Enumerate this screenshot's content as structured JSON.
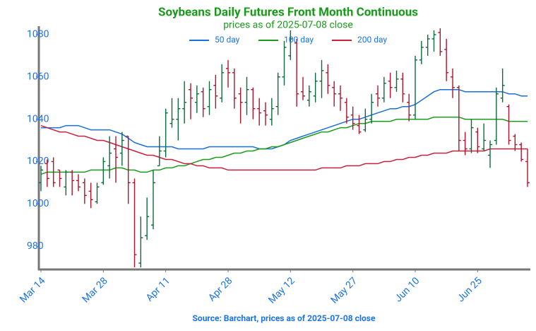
{
  "chart_data": {
    "type": "ohlc",
    "title": "Soybeans Daily Futures Front Month Continuous",
    "subtitle": "prices as of 2025-07-08 close",
    "source": "Source: Barchart, prices as of 2025-07-08 close",
    "categories": [
      "Mar 14",
      null,
      null,
      null,
      null,
      null,
      null,
      null,
      null,
      null,
      "Mar 28",
      null,
      null,
      null,
      null,
      null,
      null,
      null,
      null,
      null,
      "Apr 11",
      null,
      null,
      null,
      null,
      null,
      null,
      null,
      null,
      null,
      "Apr 28",
      null,
      null,
      null,
      null,
      null,
      null,
      null,
      null,
      null,
      "May 12",
      null,
      null,
      null,
      null,
      null,
      null,
      null,
      null,
      null,
      "May 27",
      null,
      null,
      null,
      null,
      null,
      null,
      null,
      null,
      null,
      "Jun 10",
      null,
      null,
      null,
      null,
      null,
      null,
      null,
      null,
      null,
      "Jun 25",
      null,
      null,
      null,
      null,
      null,
      null,
      null,
      null
    ],
    "open": [
      1010,
      1019,
      1020,
      1016,
      1008,
      1015,
      1011,
      1010,
      1006,
      1001,
      1010,
      1018,
      1026,
      1024,
      1032,
      1010,
      972,
      985,
      990,
      1018,
      1025,
      1038,
      1040,
      1045,
      1054,
      1048,
      1053,
      1046,
      1056,
      1050,
      1064,
      1062,
      1052,
      1048,
      1054,
      1045,
      1044,
      1040,
      1046,
      1060,
      1070,
      1076,
      1053,
      1049,
      1051,
      1058,
      1062,
      1055,
      1052,
      1048,
      1042,
      1037,
      1035,
      1040,
      1052,
      1050,
      1058,
      1055,
      1059,
      1048,
      1042,
      1068,
      1074,
      1078,
      1081,
      1073,
      1060,
      1055,
      1030,
      1026,
      1034,
      1026,
      1023,
      1030,
      1050,
      1046,
      1032,
      1028,
      1020
    ],
    "high": [
      1018,
      1021,
      1022,
      1016,
      1016,
      1016,
      1014,
      1012,
      1010,
      1010,
      1022,
      1032,
      1032,
      1034,
      1032,
      1012,
      994,
      1003,
      1016,
      1032,
      1045,
      1050,
      1050,
      1058,
      1057,
      1056,
      1055,
      1058,
      1061,
      1066,
      1068,
      1064,
      1055,
      1060,
      1055,
      1050,
      1048,
      1050,
      1062,
      1077,
      1082,
      1078,
      1060,
      1056,
      1062,
      1068,
      1066,
      1058,
      1056,
      1050,
      1046,
      1042,
      1045,
      1052,
      1056,
      1060,
      1062,
      1063,
      1062,
      1052,
      1070,
      1077,
      1080,
      1082,
      1083,
      1078,
      1064,
      1056,
      1034,
      1040,
      1036,
      1038,
      1030,
      1055,
      1064,
      1047,
      1033,
      1029,
      1026
    ],
    "low": [
      1006,
      1008,
      1008,
      1008,
      1004,
      1004,
      1006,
      1000,
      998,
      1000,
      1009,
      1012,
      1010,
      1018,
      1000,
      970,
      970,
      983,
      988,
      1018,
      1022,
      1036,
      1030,
      1038,
      1040,
      1043,
      1041,
      1042,
      1045,
      1048,
      1055,
      1045,
      1038,
      1042,
      1040,
      1037,
      1037,
      1037,
      1042,
      1056,
      1068,
      1046,
      1049,
      1046,
      1048,
      1050,
      1052,
      1046,
      1044,
      1038,
      1035,
      1033,
      1034,
      1038,
      1046,
      1048,
      1050,
      1053,
      1048,
      1039,
      1040,
      1066,
      1070,
      1072,
      1070,
      1058,
      1050,
      1025,
      1023,
      1024,
      1024,
      1025,
      1017,
      1028,
      1048,
      1028,
      1025,
      1020,
      1008
    ],
    "close": [
      1016,
      1012,
      1010,
      1012,
      1015,
      1011,
      1008,
      1004,
      1002,
      1008,
      1020,
      1024,
      1022,
      1030,
      1010,
      976,
      984,
      994,
      1010,
      1025,
      1043,
      1040,
      1045,
      1048,
      1050,
      1052,
      1045,
      1054,
      1051,
      1062,
      1062,
      1050,
      1048,
      1054,
      1045,
      1043,
      1042,
      1045,
      1060,
      1074,
      1078,
      1052,
      1051,
      1053,
      1058,
      1063,
      1056,
      1052,
      1050,
      1041,
      1038,
      1034,
      1040,
      1048,
      1050,
      1057,
      1055,
      1059,
      1052,
      1042,
      1068,
      1074,
      1078,
      1080,
      1072,
      1062,
      1055,
      1030,
      1026,
      1036,
      1027,
      1030,
      1028,
      1052,
      1056,
      1030,
      1028,
      1021,
      1010
    ],
    "up_color": "#0b6b3a",
    "down_color": "#b0132b",
    "series": [
      {
        "name": "50 day",
        "color": "#1a6fd8",
        "values": [
          1036,
          1036,
          1036,
          1036,
          1037,
          1037,
          1037,
          1036,
          1035,
          1035,
          1035,
          1035,
          1034,
          1033,
          1031,
          1029,
          1028,
          1027,
          1027,
          1027,
          1027,
          1027,
          1026,
          1026,
          1026,
          1026,
          1026,
          1027,
          1027,
          1027,
          1027,
          1027,
          1027,
          1027,
          1027,
          1026,
          1026,
          1026,
          1027,
          1028,
          1030,
          1031,
          1032,
          1033,
          1034,
          1035,
          1036,
          1037,
          1038,
          1039,
          1040,
          1040,
          1041,
          1042,
          1043,
          1044,
          1045,
          1045,
          1046,
          1046,
          1047,
          1049,
          1051,
          1053,
          1054,
          1054,
          1054,
          1054,
          1053,
          1053,
          1053,
          1053,
          1053,
          1053,
          1053,
          1052,
          1052,
          1051,
          1051
        ]
      },
      {
        "name": "100 day",
        "color": "#1a9a1a",
        "values": [
          1014,
          1015,
          1015,
          1015,
          1015,
          1015,
          1015,
          1015,
          1016,
          1016,
          1016,
          1016,
          1017,
          1017,
          1016,
          1016,
          1015,
          1015,
          1016,
          1016,
          1017,
          1017,
          1018,
          1018,
          1019,
          1020,
          1021,
          1021,
          1022,
          1022,
          1023,
          1024,
          1024,
          1025,
          1025,
          1026,
          1026,
          1027,
          1027,
          1028,
          1029,
          1030,
          1031,
          1032,
          1033,
          1034,
          1034,
          1035,
          1036,
          1036,
          1037,
          1038,
          1038,
          1039,
          1039,
          1039,
          1039,
          1040,
          1040,
          1040,
          1040,
          1040,
          1040,
          1041,
          1041,
          1041,
          1041,
          1041,
          1040,
          1040,
          1040,
          1040,
          1040,
          1040,
          1040,
          1039,
          1039,
          1039,
          1039
        ]
      },
      {
        "name": "200 day",
        "color": "#c8213c",
        "values": [
          1037,
          1036,
          1035,
          1034,
          1034,
          1033,
          1032,
          1032,
          1031,
          1030,
          1030,
          1029,
          1028,
          1027,
          1026,
          1025,
          1024,
          1023,
          1023,
          1022,
          1021,
          1021,
          1020,
          1019,
          1019,
          1018,
          1018,
          1017,
          1017,
          1017,
          1016,
          1016,
          1016,
          1016,
          1016,
          1016,
          1016,
          1016,
          1016,
          1016,
          1016,
          1016,
          1016,
          1016,
          1016,
          1017,
          1017,
          1017,
          1017,
          1018,
          1018,
          1018,
          1019,
          1019,
          1019,
          1020,
          1020,
          1021,
          1021,
          1022,
          1022,
          1023,
          1023,
          1024,
          1024,
          1024,
          1025,
          1025,
          1025,
          1025,
          1025,
          1025,
          1026,
          1026,
          1026,
          1026,
          1026,
          1026,
          1026
        ]
      }
    ],
    "ylim": [
      969,
      1084
    ],
    "yticks": [
      980,
      1000,
      1020,
      1040,
      1060,
      1080
    ],
    "legend": "top"
  }
}
